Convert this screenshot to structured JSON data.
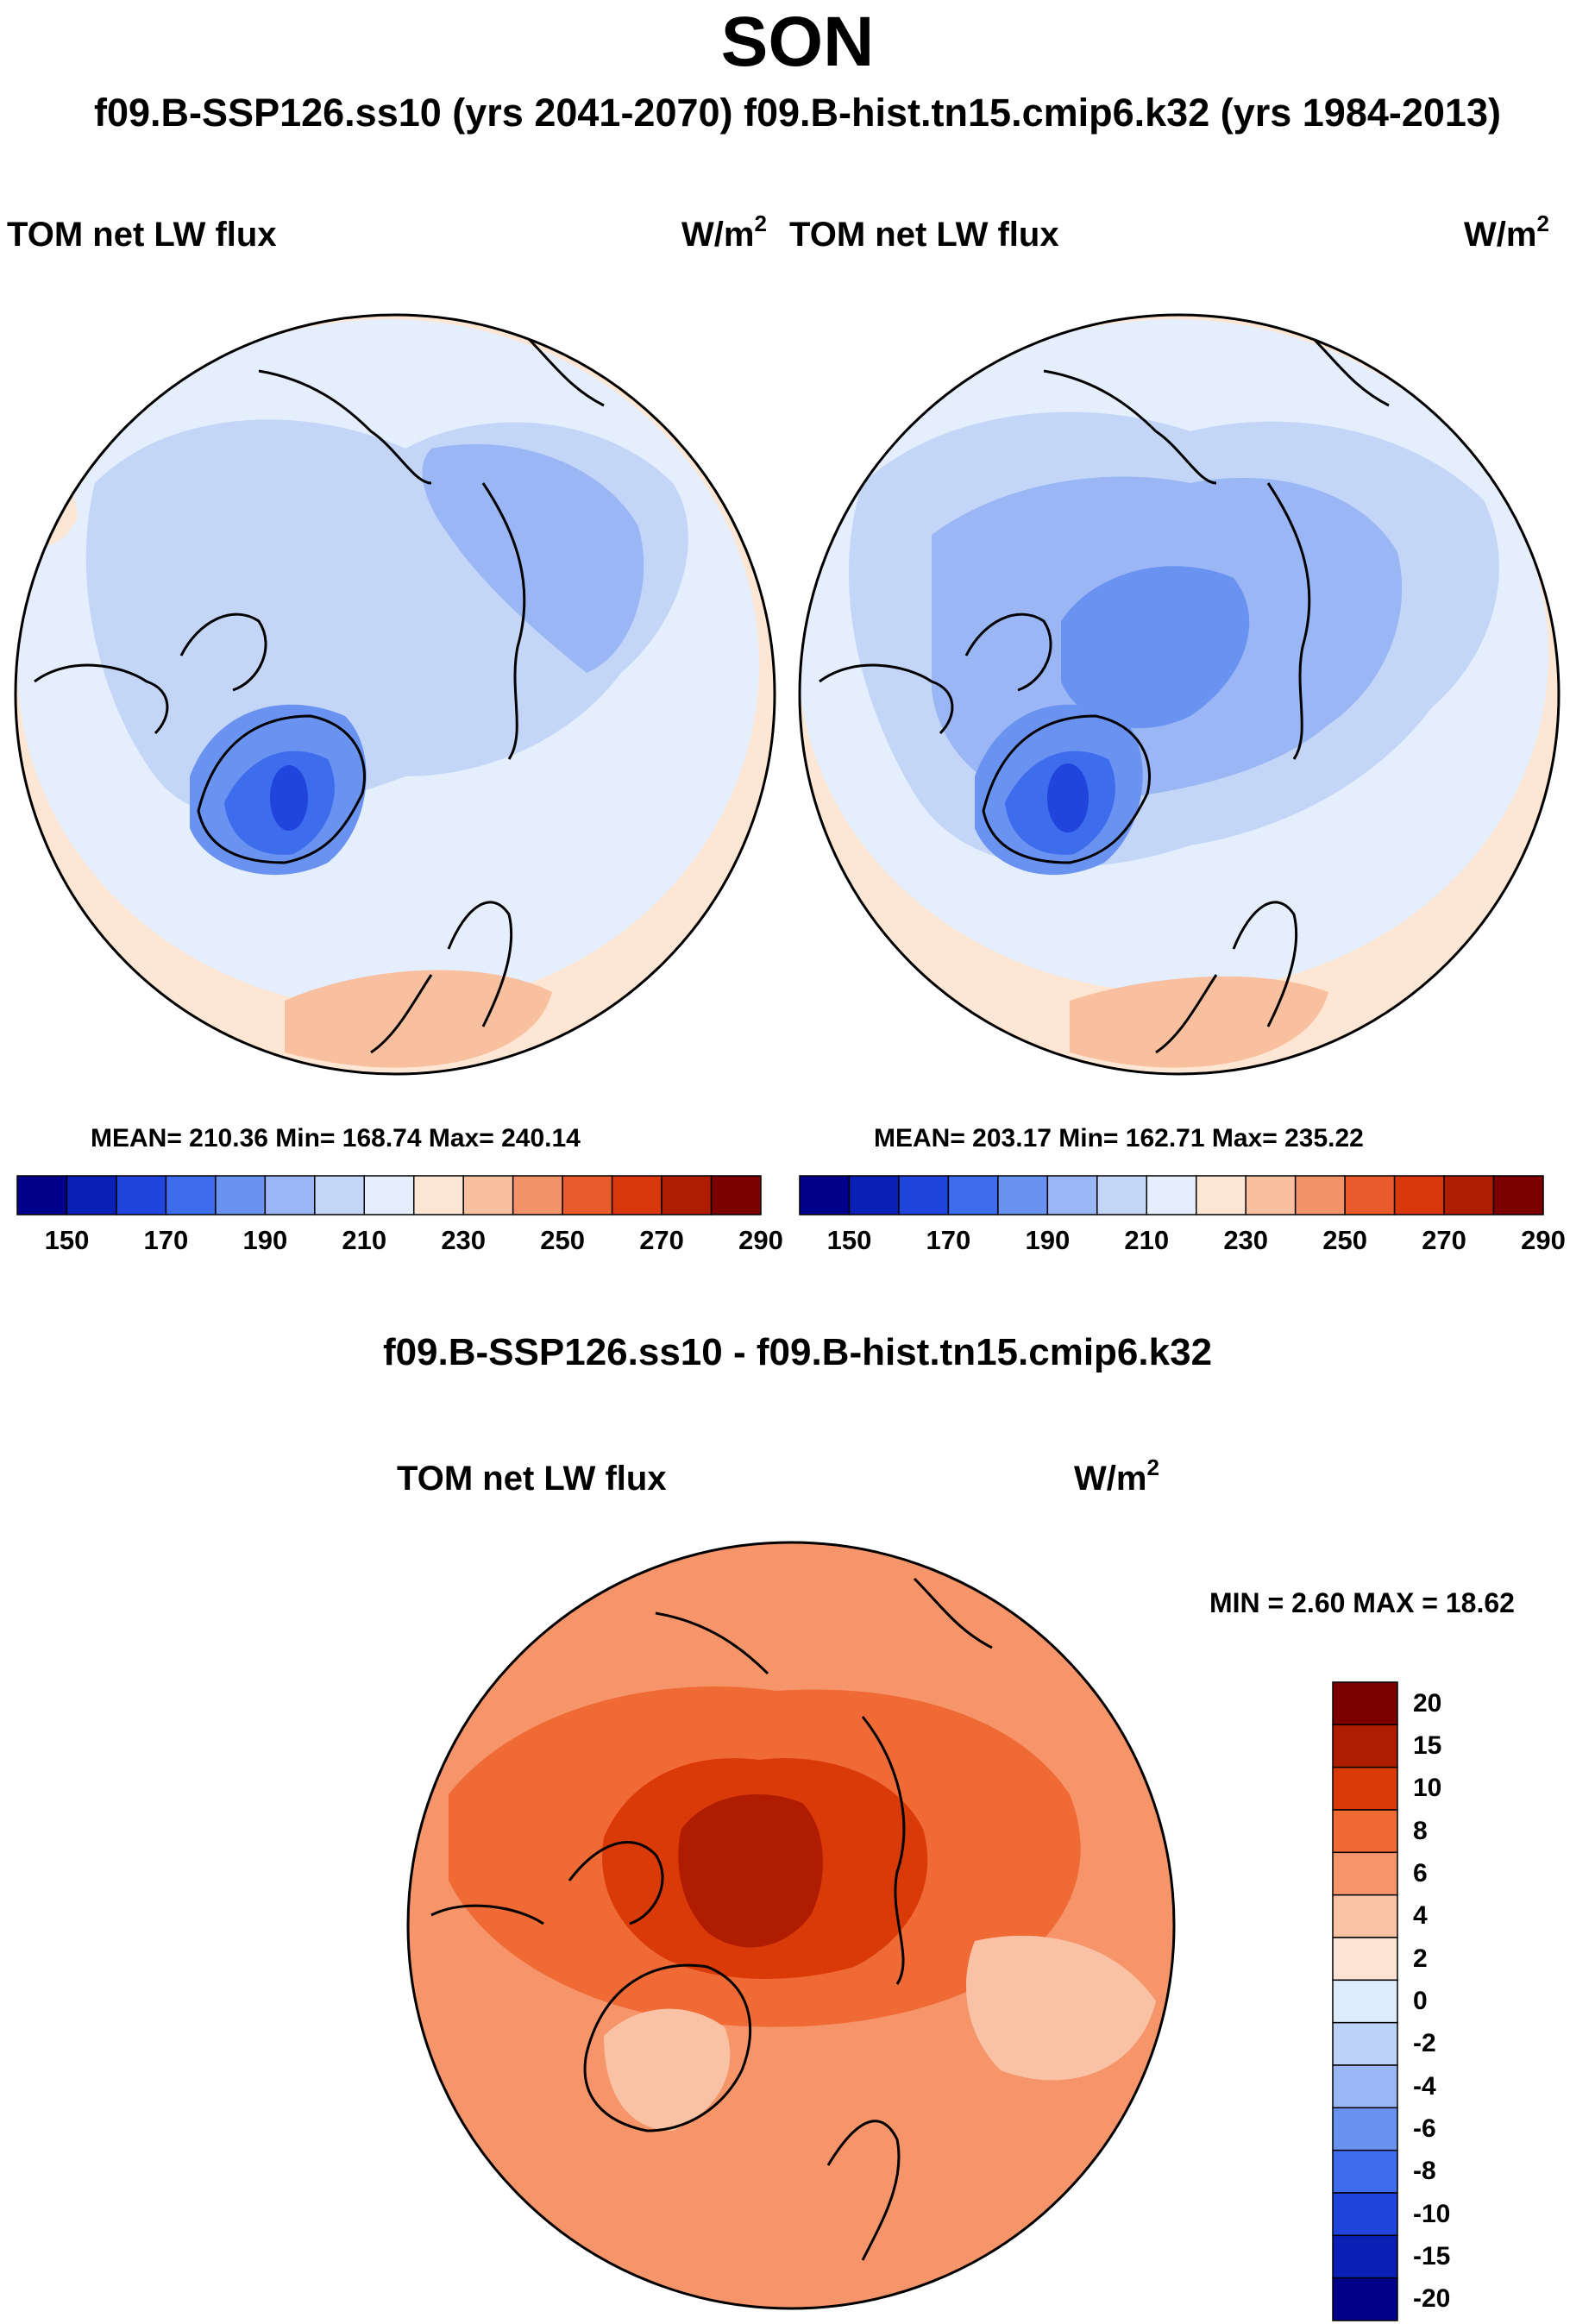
{
  "title": "SON",
  "subtitle": "f09.B-SSP126.ss10 (yrs 2041-2070)  f09.B-hist.tn15.cmip6.k32 (yrs 1984-2013)",
  "colors": {
    "blue_red_14": [
      "#00008b",
      "#0a1fb4",
      "#1f45dc",
      "#3d6cec",
      "#6a92f0",
      "#9ab6f4",
      "#c4d6f8",
      "#e4eefc",
      "#fde6d4",
      "#f9c0a0",
      "#f3936a",
      "#ea5b2c",
      "#d9380d",
      "#b01c00",
      "#7d0000"
    ],
    "diff_20": [
      "#7d0000",
      "#b01c00",
      "#da3a08",
      "#f06a36",
      "#f7956a",
      "#f9c2a4",
      "#fde4d4",
      "#ddecfb",
      "#bcd2f8",
      "#9ab6f4",
      "#6a92f0",
      "#3d6cec",
      "#1f45dc",
      "#0a1fb4",
      "#00008b"
    ]
  },
  "chart_data": [
    {
      "type": "heatmap",
      "projection": "north-polar-stereographic",
      "title_left": "TOM net LW flux",
      "units": "W/m",
      "units_sup": "2",
      "stats": "MEAN= 210.36  Min= 168.74  Max= 240.14",
      "mean": 210.36,
      "min": 168.74,
      "max": 240.14,
      "colorbar": {
        "orientation": "horizontal",
        "levels": [
          150,
          160,
          170,
          180,
          190,
          200,
          210,
          220,
          230,
          240,
          250,
          260,
          270,
          280,
          290
        ],
        "tick_labels": [
          "150",
          "170",
          "190",
          "210",
          "230",
          "250",
          "270",
          "290"
        ]
      }
    },
    {
      "type": "heatmap",
      "projection": "north-polar-stereographic",
      "title_left": "TOM net LW flux",
      "units": "W/m",
      "units_sup": "2",
      "stats": "MEAN= 203.17  Min= 162.71  Max= 235.22",
      "mean": 203.17,
      "min": 162.71,
      "max": 235.22,
      "colorbar": {
        "orientation": "horizontal",
        "levels": [
          150,
          160,
          170,
          180,
          190,
          200,
          210,
          220,
          230,
          240,
          250,
          260,
          270,
          280,
          290
        ],
        "tick_labels": [
          "150",
          "170",
          "190",
          "210",
          "230",
          "250",
          "270",
          "290"
        ]
      }
    },
    {
      "type": "heatmap",
      "projection": "north-polar-stereographic",
      "heading": "f09.B-SSP126.ss10 - f09.B-hist.tn15.cmip6.k32",
      "title_left": "TOM net LW flux",
      "units": "W/m",
      "units_sup": "2",
      "stats": "MIN =   2.60 MAX =  18.62",
      "min": 2.6,
      "max": 18.62,
      "colorbar": {
        "orientation": "vertical",
        "tick_labels": [
          "20",
          "15",
          "10",
          "8",
          "6",
          "4",
          "2",
          "0",
          "-2",
          "-4",
          "-6",
          "-8",
          "-10",
          "-15",
          "-20"
        ]
      }
    }
  ]
}
